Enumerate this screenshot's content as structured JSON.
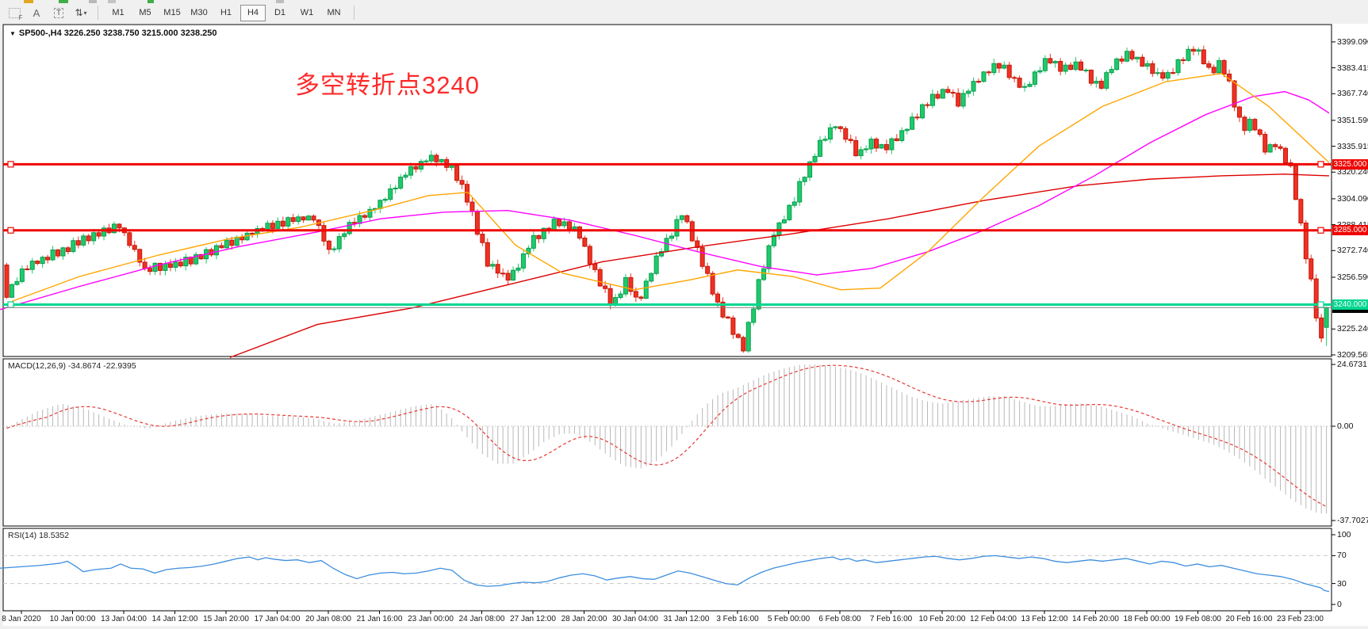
{
  "toolbar": {
    "tools": [
      {
        "name": "crosshair-tool",
        "label": "F"
      },
      {
        "name": "text-label-tool",
        "label": "A"
      },
      {
        "name": "text-tool",
        "label": "T"
      },
      {
        "name": "arrow-tool",
        "label": "⇅"
      }
    ],
    "timeframes": [
      "M1",
      "M5",
      "M15",
      "M30",
      "H1",
      "H4",
      "D1",
      "W1",
      "MN"
    ],
    "active_timeframe": "H4"
  },
  "chart": {
    "title": "SP500-,H4  3226.250 3238.750 3215.000 3238.250",
    "annotation": {
      "text": "多空转折点3240",
      "color": "#fe2b2b"
    },
    "up_color": "#1ecb6b",
    "down_color": "#ef3124"
  },
  "indicators": {
    "macd": {
      "text": "MACD(12,26,9) -34.8674 -22.9395",
      "axis": [
        "24.6731",
        "0.00",
        "-37.7027"
      ]
    },
    "rsi": {
      "text": "RSI(14) 18.5352",
      "axis": [
        "100",
        "70",
        "30",
        "0"
      ]
    }
  },
  "price_tags": [
    {
      "name": "tag-3325",
      "label": "3325.000",
      "price": 3325.0,
      "bg": "#f00500",
      "fg": "#ffffff"
    },
    {
      "name": "tag-3285",
      "label": "3285.000",
      "price": 3285.0,
      "bg": "#f00500",
      "fg": "#ffffff"
    },
    {
      "name": "tag-3240",
      "label": "3240.000",
      "price": 3240.0,
      "bg": "#00d68f",
      "fg": "#ffffff"
    },
    {
      "name": "tag-last",
      "label": "3238.250",
      "price": 3238.25,
      "bg": "#000000",
      "fg": "#ffffff"
    }
  ],
  "chart_data": {
    "type": "candlestick",
    "symbol": "SP500-",
    "timeframe": "H4",
    "title": "SP500-,H4",
    "last_bar": {
      "open": 3226.25,
      "high": 3238.75,
      "low": 3215.0,
      "close": 3238.25
    },
    "y_range": [
      3208.6,
      3409.6
    ],
    "price_axis_ticks": [
      3399.09,
      3383.415,
      3367.74,
      3351.59,
      3335.915,
      3320.24,
      3304.09,
      3288.415,
      3272.74,
      3256.59,
      3225.24,
      3209.565
    ],
    "horizontal_lines": [
      {
        "price": 3325.0,
        "color": "#f00500",
        "width": 3
      },
      {
        "price": 3285.0,
        "color": "#f00500",
        "width": 3
      },
      {
        "price": 3240.0,
        "color": "#00d68f",
        "width": 3
      },
      {
        "price": 3238.25,
        "color": "#808080",
        "width": 1,
        "style": "current-price"
      }
    ],
    "close_waypoints": [
      [
        0,
        3243
      ],
      [
        28,
        3262
      ],
      [
        88,
        3276
      ],
      [
        148,
        3288
      ],
      [
        180,
        3261
      ],
      [
        232,
        3266
      ],
      [
        317,
        3284
      ],
      [
        360,
        3291
      ],
      [
        392,
        3293
      ],
      [
        414,
        3271
      ],
      [
        437,
        3288
      ],
      [
        471,
        3299
      ],
      [
        506,
        3318
      ],
      [
        540,
        3330
      ],
      [
        570,
        3322
      ],
      [
        590,
        3299
      ],
      [
        614,
        3263
      ],
      [
        640,
        3256
      ],
      [
        670,
        3280
      ],
      [
        700,
        3291
      ],
      [
        724,
        3286
      ],
      [
        745,
        3262
      ],
      [
        770,
        3240
      ],
      [
        786,
        3254
      ],
      [
        802,
        3242
      ],
      [
        830,
        3272
      ],
      [
        858,
        3295
      ],
      [
        880,
        3270
      ],
      [
        900,
        3242
      ],
      [
        920,
        3226
      ],
      [
        935,
        3214
      ],
      [
        955,
        3255
      ],
      [
        975,
        3285
      ],
      [
        995,
        3300
      ],
      [
        1015,
        3322
      ],
      [
        1035,
        3340
      ],
      [
        1050,
        3350
      ],
      [
        1065,
        3341
      ],
      [
        1080,
        3330
      ],
      [
        1095,
        3340
      ],
      [
        1110,
        3334
      ],
      [
        1130,
        3342
      ],
      [
        1150,
        3352
      ],
      [
        1170,
        3364
      ],
      [
        1190,
        3371
      ],
      [
        1205,
        3362
      ],
      [
        1220,
        3371
      ],
      [
        1240,
        3380
      ],
      [
        1260,
        3386
      ],
      [
        1275,
        3377
      ],
      [
        1290,
        3370
      ],
      [
        1305,
        3381
      ],
      [
        1320,
        3389
      ],
      [
        1340,
        3382
      ],
      [
        1355,
        3386
      ],
      [
        1370,
        3378
      ],
      [
        1385,
        3371
      ],
      [
        1400,
        3384
      ],
      [
        1420,
        3392
      ],
      [
        1440,
        3386
      ],
      [
        1455,
        3380
      ],
      [
        1470,
        3378
      ],
      [
        1490,
        3390
      ],
      [
        1505,
        3396
      ],
      [
        1515,
        3388
      ],
      [
        1525,
        3380
      ],
      [
        1535,
        3386
      ],
      [
        1545,
        3378
      ],
      [
        1555,
        3360
      ],
      [
        1565,
        3345
      ],
      [
        1575,
        3352
      ],
      [
        1585,
        3342
      ],
      [
        1595,
        3333
      ],
      [
        1605,
        3338
      ],
      [
        1615,
        3330
      ],
      [
        1625,
        3322
      ],
      [
        1633,
        3300
      ],
      [
        1641,
        3278
      ],
      [
        1648,
        3262
      ],
      [
        1656,
        3236
      ],
      [
        1664,
        3218
      ],
      [
        1670,
        3238
      ]
    ],
    "ma_orange": [
      [
        15,
        3242
      ],
      [
        100,
        3257
      ],
      [
        200,
        3270
      ],
      [
        290,
        3280
      ],
      [
        380,
        3287
      ],
      [
        470,
        3297
      ],
      [
        540,
        3306
      ],
      [
        590,
        3308
      ],
      [
        650,
        3276
      ],
      [
        710,
        3259
      ],
      [
        800,
        3249
      ],
      [
        870,
        3255
      ],
      [
        930,
        3261
      ],
      [
        1000,
        3257
      ],
      [
        1060,
        3249
      ],
      [
        1110,
        3250
      ],
      [
        1170,
        3272
      ],
      [
        1240,
        3305
      ],
      [
        1310,
        3336
      ],
      [
        1390,
        3360
      ],
      [
        1470,
        3375
      ],
      [
        1540,
        3380
      ],
      [
        1600,
        3360
      ],
      [
        1676,
        3326
      ]
    ],
    "ma_magenta": [
      [
        0,
        3237
      ],
      [
        100,
        3251
      ],
      [
        200,
        3264
      ],
      [
        300,
        3275
      ],
      [
        400,
        3284
      ],
      [
        480,
        3292
      ],
      [
        560,
        3296
      ],
      [
        640,
        3297
      ],
      [
        720,
        3291
      ],
      [
        800,
        3282
      ],
      [
        880,
        3272
      ],
      [
        960,
        3263
      ],
      [
        1030,
        3258
      ],
      [
        1100,
        3262
      ],
      [
        1170,
        3272
      ],
      [
        1240,
        3285
      ],
      [
        1310,
        3300
      ],
      [
        1380,
        3318
      ],
      [
        1450,
        3338
      ],
      [
        1520,
        3355
      ],
      [
        1580,
        3366
      ],
      [
        1620,
        3369
      ],
      [
        1650,
        3364
      ],
      [
        1676,
        3356
      ]
    ],
    "ma_red": [
      [
        290,
        3208
      ],
      [
        400,
        3228
      ],
      [
        520,
        3238
      ],
      [
        640,
        3252
      ],
      [
        760,
        3266
      ],
      [
        880,
        3275
      ],
      [
        1000,
        3283
      ],
      [
        1120,
        3292
      ],
      [
        1240,
        3303
      ],
      [
        1360,
        3312
      ],
      [
        1450,
        3316
      ],
      [
        1540,
        3318
      ],
      [
        1620,
        3319
      ],
      [
        1676,
        3318
      ]
    ],
    "macd": {
      "label": "MACD(12,26,9)",
      "value": -34.8674,
      "signal_value": -22.9395,
      "range": [
        -37.7027,
        24.6731
      ],
      "waypoints": [
        [
          0,
          -2
        ],
        [
          20,
          2
        ],
        [
          45,
          6
        ],
        [
          75,
          9
        ],
        [
          105,
          7
        ],
        [
          135,
          3
        ],
        [
          160,
          0
        ],
        [
          185,
          -1
        ],
        [
          215,
          2
        ],
        [
          245,
          4
        ],
        [
          275,
          5
        ],
        [
          305,
          5
        ],
        [
          335,
          4
        ],
        [
          365,
          4
        ],
        [
          395,
          3
        ],
        [
          420,
          1
        ],
        [
          445,
          2
        ],
        [
          470,
          4
        ],
        [
          495,
          6
        ],
        [
          520,
          8
        ],
        [
          545,
          9
        ],
        [
          565,
          4
        ],
        [
          585,
          -4
        ],
        [
          605,
          -11
        ],
        [
          625,
          -15
        ],
        [
          645,
          -15
        ],
        [
          665,
          -11
        ],
        [
          685,
          -6
        ],
        [
          705,
          -3
        ],
        [
          725,
          -3
        ],
        [
          745,
          -7
        ],
        [
          765,
          -12
        ],
        [
          785,
          -16
        ],
        [
          805,
          -17
        ],
        [
          825,
          -14
        ],
        [
          845,
          -8
        ],
        [
          865,
          0
        ],
        [
          885,
          8
        ],
        [
          905,
          13
        ],
        [
          925,
          15
        ],
        [
          945,
          18
        ],
        [
          965,
          21
        ],
        [
          985,
          23
        ],
        [
          1005,
          24.5
        ],
        [
          1025,
          24.7
        ],
        [
          1045,
          24
        ],
        [
          1065,
          23
        ],
        [
          1085,
          21
        ],
        [
          1105,
          18
        ],
        [
          1125,
          15
        ],
        [
          1145,
          12
        ],
        [
          1165,
          10
        ],
        [
          1185,
          9
        ],
        [
          1205,
          10
        ],
        [
          1225,
          11
        ],
        [
          1245,
          12
        ],
        [
          1265,
          12
        ],
        [
          1285,
          10
        ],
        [
          1305,
          8
        ],
        [
          1325,
          8
        ],
        [
          1345,
          9
        ],
        [
          1365,
          9
        ],
        [
          1385,
          8
        ],
        [
          1405,
          6
        ],
        [
          1425,
          4
        ],
        [
          1445,
          1
        ],
        [
          1465,
          -1
        ],
        [
          1485,
          -3
        ],
        [
          1505,
          -5
        ],
        [
          1525,
          -7
        ],
        [
          1545,
          -10
        ],
        [
          1565,
          -14
        ],
        [
          1585,
          -19
        ],
        [
          1605,
          -24
        ],
        [
          1625,
          -29
        ],
        [
          1645,
          -33
        ],
        [
          1660,
          -34.9
        ],
        [
          1670,
          -34.87
        ]
      ]
    },
    "rsi": {
      "label": "RSI(14)",
      "value": 18.5352,
      "levels": [
        70,
        30
      ],
      "range": [
        0,
        100
      ],
      "waypoints": [
        [
          0,
          52
        ],
        [
          25,
          54
        ],
        [
          50,
          56
        ],
        [
          75,
          59
        ],
        [
          85,
          62
        ],
        [
          95,
          55
        ],
        [
          105,
          47
        ],
        [
          120,
          50
        ],
        [
          140,
          52
        ],
        [
          152,
          58
        ],
        [
          165,
          52
        ],
        [
          180,
          51
        ],
        [
          195,
          45
        ],
        [
          210,
          50
        ],
        [
          225,
          52
        ],
        [
          240,
          53
        ],
        [
          255,
          55
        ],
        [
          270,
          58
        ],
        [
          285,
          62
        ],
        [
          300,
          66
        ],
        [
          315,
          68
        ],
        [
          325,
          64
        ],
        [
          335,
          67
        ],
        [
          345,
          65
        ],
        [
          360,
          63
        ],
        [
          375,
          64
        ],
        [
          390,
          60
        ],
        [
          405,
          63
        ],
        [
          420,
          52
        ],
        [
          435,
          43
        ],
        [
          450,
          37
        ],
        [
          465,
          42
        ],
        [
          480,
          45
        ],
        [
          495,
          46
        ],
        [
          510,
          44
        ],
        [
          525,
          45
        ],
        [
          540,
          48
        ],
        [
          555,
          52
        ],
        [
          570,
          49
        ],
        [
          585,
          35
        ],
        [
          600,
          28
        ],
        [
          615,
          26
        ],
        [
          630,
          27
        ],
        [
          645,
          30
        ],
        [
          660,
          32
        ],
        [
          675,
          31
        ],
        [
          690,
          33
        ],
        [
          705,
          38
        ],
        [
          720,
          42
        ],
        [
          735,
          44
        ],
        [
          750,
          41
        ],
        [
          765,
          35
        ],
        [
          780,
          38
        ],
        [
          795,
          40
        ],
        [
          810,
          37
        ],
        [
          825,
          36
        ],
        [
          840,
          42
        ],
        [
          855,
          48
        ],
        [
          870,
          45
        ],
        [
          885,
          40
        ],
        [
          900,
          35
        ],
        [
          915,
          30
        ],
        [
          930,
          28
        ],
        [
          945,
          38
        ],
        [
          960,
          46
        ],
        [
          975,
          52
        ],
        [
          990,
          56
        ],
        [
          1005,
          60
        ],
        [
          1020,
          63
        ],
        [
          1035,
          66
        ],
        [
          1050,
          68
        ],
        [
          1060,
          64
        ],
        [
          1070,
          66
        ],
        [
          1080,
          62
        ],
        [
          1090,
          64
        ],
        [
          1105,
          60
        ],
        [
          1120,
          62
        ],
        [
          1135,
          64
        ],
        [
          1150,
          66
        ],
        [
          1165,
          68
        ],
        [
          1180,
          69
        ],
        [
          1195,
          66
        ],
        [
          1210,
          64
        ],
        [
          1225,
          66
        ],
        [
          1240,
          69
        ],
        [
          1255,
          70
        ],
        [
          1270,
          68
        ],
        [
          1285,
          66
        ],
        [
          1300,
          68
        ],
        [
          1315,
          66
        ],
        [
          1330,
          62
        ],
        [
          1345,
          60
        ],
        [
          1360,
          62
        ],
        [
          1375,
          64
        ],
        [
          1390,
          62
        ],
        [
          1405,
          64
        ],
        [
          1420,
          66
        ],
        [
          1435,
          62
        ],
        [
          1450,
          58
        ],
        [
          1465,
          62
        ],
        [
          1480,
          60
        ],
        [
          1495,
          55
        ],
        [
          1510,
          58
        ],
        [
          1525,
          54
        ],
        [
          1540,
          56
        ],
        [
          1555,
          52
        ],
        [
          1570,
          48
        ],
        [
          1585,
          44
        ],
        [
          1600,
          42
        ],
        [
          1615,
          40
        ],
        [
          1630,
          36
        ],
        [
          1645,
          30
        ],
        [
          1655,
          27
        ],
        [
          1665,
          24
        ],
        [
          1670,
          20
        ],
        [
          1676,
          18.5
        ]
      ]
    },
    "time_labels": [
      "8 Jan 2020",
      "10 Jan 00:00",
      "13 Jan 04:00",
      "14 Jan 12:00",
      "15 Jan 20:00",
      "17 Jan 04:00",
      "20 Jan 08:00",
      "21 Jan 16:00",
      "23 Jan 00:00",
      "24 Jan 08:00",
      "27 Jan 12:00",
      "28 Jan 20:00",
      "30 Jan 04:00",
      "31 Jan 12:00",
      "3 Feb 16:00",
      "5 Feb 00:00",
      "6 Feb 08:00",
      "7 Feb 16:00",
      "10 Feb 20:00",
      "12 Feb 04:00",
      "13 Feb 12:00",
      "14 Feb 20:00",
      "18 Feb 00:00",
      "19 Feb 08:00",
      "20 Feb 16:00",
      "23 Feb 23:00"
    ]
  }
}
